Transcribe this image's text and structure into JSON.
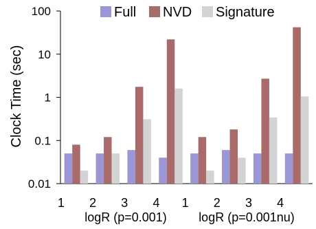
{
  "chart_data": {
    "type": "bar",
    "ylabel": "Clock Time (sec)",
    "yscale": "log",
    "ylim": [
      0.01,
      100
    ],
    "yticks": [
      "0.01",
      "0.1",
      "1",
      "10",
      "100"
    ],
    "categories": [
      "1",
      "2",
      "3",
      "4",
      "1",
      "2",
      "3",
      "4"
    ],
    "groups": [
      {
        "label": "logR (p=0.001)",
        "categories": [
          "1",
          "2",
          "3",
          "4"
        ]
      },
      {
        "label": "logR (p=0.001nu)",
        "categories": [
          "1",
          "2",
          "3",
          "4"
        ]
      }
    ],
    "series": [
      {
        "name": "Full",
        "color": "#9b96d6",
        "values": [
          0.05,
          0.05,
          0.06,
          0.04,
          0.05,
          0.06,
          0.05,
          0.05
        ]
      },
      {
        "name": "NVD",
        "color": "#a96a6a",
        "values": [
          0.08,
          0.12,
          1.75,
          22,
          0.12,
          0.18,
          2.7,
          42
        ]
      },
      {
        "name": "Signature",
        "color": "#d3d3d3",
        "values": [
          0.02,
          0.05,
          0.31,
          1.6,
          0.02,
          0.04,
          0.34,
          1.05
        ]
      }
    ],
    "legend": "top",
    "grid": false
  }
}
